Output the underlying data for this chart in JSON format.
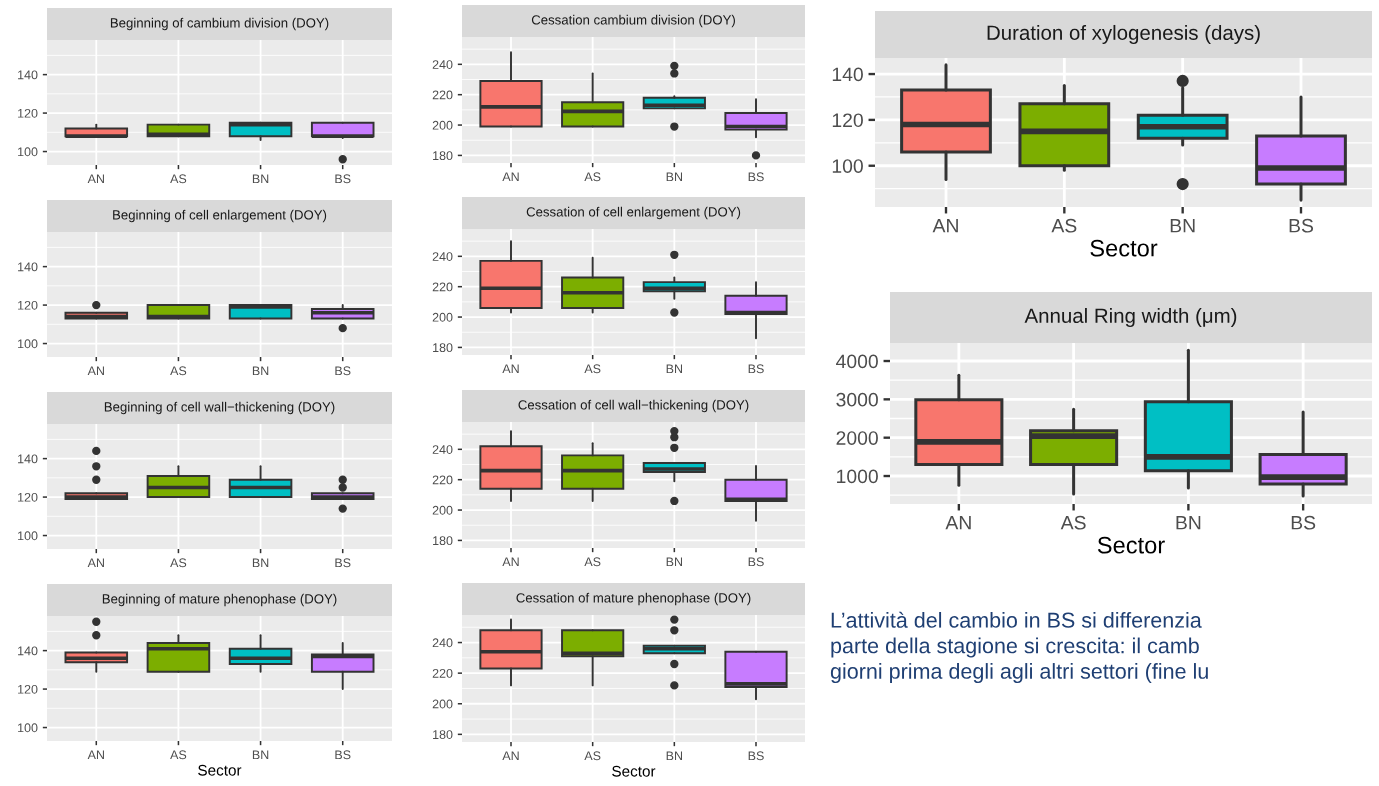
{
  "chart_data": [
    {
      "type": "box",
      "title": "Beginning of cambium division (DOY)",
      "categories": [
        "AN",
        "AS",
        "BN",
        "BS"
      ],
      "colors": [
        "#f8766d",
        "#7cae00",
        "#00bfc4",
        "#c77cff"
      ],
      "ylim": [
        93,
        158
      ],
      "yticks": [
        100,
        120,
        140
      ],
      "grid": true,
      "boxes": [
        {
          "low": 108,
          "q1": 108,
          "median": 108,
          "q3": 112,
          "high": 114
        },
        {
          "low": 108,
          "q1": 108,
          "median": 109,
          "q3": 114,
          "high": 114
        },
        {
          "low": 106,
          "q1": 108,
          "median": 114,
          "q3": 115,
          "high": 115
        },
        {
          "low": 107,
          "q1": 108,
          "median": 108,
          "q3": 115,
          "high": 115,
          "outliers": [
            96
          ]
        }
      ]
    },
    {
      "type": "box",
      "title": "Beginning of cell enlargement (DOY)",
      "categories": [
        "AN",
        "AS",
        "BN",
        "BS"
      ],
      "colors": [
        "#f8766d",
        "#7cae00",
        "#00bfc4",
        "#c77cff"
      ],
      "ylim": [
        93,
        158
      ],
      "yticks": [
        100,
        120,
        140
      ],
      "grid": true,
      "boxes": [
        {
          "low": 113,
          "q1": 113,
          "median": 114,
          "q3": 116,
          "high": 116,
          "outliers": [
            120
          ]
        },
        {
          "low": 113,
          "q1": 113,
          "median": 114,
          "q3": 120,
          "high": 120
        },
        {
          "low": 113,
          "q1": 113,
          "median": 119,
          "q3": 120,
          "high": 120
        },
        {
          "low": 113,
          "q1": 113,
          "median": 116,
          "q3": 118,
          "high": 120,
          "outliers": [
            108
          ]
        }
      ]
    },
    {
      "type": "box",
      "title": "Beginning of cell wall−thickening (DOY)",
      "categories": [
        "AN",
        "AS",
        "BN",
        "BS"
      ],
      "colors": [
        "#f8766d",
        "#7cae00",
        "#00bfc4",
        "#c77cff"
      ],
      "ylim": [
        93,
        158
      ],
      "yticks": [
        100,
        120,
        140
      ],
      "grid": true,
      "boxes": [
        {
          "low": 119,
          "q1": 119,
          "median": 120,
          "q3": 122,
          "high": 122,
          "outliers": [
            129,
            136,
            144
          ]
        },
        {
          "low": 120,
          "q1": 120,
          "median": 125,
          "q3": 131,
          "high": 136
        },
        {
          "low": 120,
          "q1": 120,
          "median": 125,
          "q3": 129,
          "high": 136
        },
        {
          "low": 119,
          "q1": 119,
          "median": 120,
          "q3": 122,
          "high": 122,
          "outliers": [
            114,
            125,
            129
          ]
        }
      ]
    },
    {
      "type": "box",
      "title": "Beginning of mature phenophase (DOY)",
      "xlabel": "Sector",
      "categories": [
        "AN",
        "AS",
        "BN",
        "BS"
      ],
      "colors": [
        "#f8766d",
        "#7cae00",
        "#00bfc4",
        "#c77cff"
      ],
      "ylim": [
        93,
        158
      ],
      "yticks": [
        100,
        120,
        140
      ],
      "grid": true,
      "boxes": [
        {
          "low": 129,
          "q1": 134,
          "median": 136,
          "q3": 139,
          "high": 139,
          "outliers": [
            148,
            155
          ]
        },
        {
          "low": 129,
          "q1": 129,
          "median": 141,
          "q3": 144,
          "high": 148
        },
        {
          "low": 129,
          "q1": 133,
          "median": 136,
          "q3": 141,
          "high": 148
        },
        {
          "low": 120,
          "q1": 129,
          "median": 137,
          "q3": 138,
          "high": 144
        }
      ]
    },
    {
      "type": "box",
      "title": "Cessation cambium division (DOY)",
      "categories": [
        "AN",
        "AS",
        "BN",
        "BS"
      ],
      "colors": [
        "#f8766d",
        "#7cae00",
        "#00bfc4",
        "#c77cff"
      ],
      "ylim": [
        175,
        258
      ],
      "yticks": [
        180,
        200,
        220,
        240
      ],
      "grid": true,
      "boxes": [
        {
          "low": 199,
          "q1": 199,
          "median": 212,
          "q3": 229,
          "high": 248
        },
        {
          "low": 199,
          "q1": 199,
          "median": 209,
          "q3": 215,
          "high": 234
        },
        {
          "low": 211,
          "q1": 211,
          "median": 213,
          "q3": 218,
          "high": 219,
          "outliers": [
            199,
            234,
            239
          ]
        },
        {
          "low": 192,
          "q1": 197,
          "median": 199,
          "q3": 208,
          "high": 217,
          "outliers": [
            180
          ]
        }
      ]
    },
    {
      "type": "box",
      "title": "Cessation of cell enlargement (DOY)",
      "categories": [
        "AN",
        "AS",
        "BN",
        "BS"
      ],
      "colors": [
        "#f8766d",
        "#7cae00",
        "#00bfc4",
        "#c77cff"
      ],
      "ylim": [
        175,
        258
      ],
      "yticks": [
        180,
        200,
        220,
        240
      ],
      "grid": true,
      "boxes": [
        {
          "low": 203,
          "q1": 206,
          "median": 219,
          "q3": 237,
          "high": 250
        },
        {
          "low": 203,
          "q1": 206,
          "median": 216,
          "q3": 226,
          "high": 239
        },
        {
          "low": 212,
          "q1": 217,
          "median": 219,
          "q3": 223,
          "high": 226,
          "outliers": [
            203,
            241
          ]
        },
        {
          "low": 186,
          "q1": 202,
          "median": 203,
          "q3": 214,
          "high": 223
        }
      ]
    },
    {
      "type": "box",
      "title": "Cessation of cell wall−thickening (DOY)",
      "categories": [
        "AN",
        "AS",
        "BN",
        "BS"
      ],
      "colors": [
        "#f8766d",
        "#7cae00",
        "#00bfc4",
        "#c77cff"
      ],
      "ylim": [
        175,
        258
      ],
      "yticks": [
        180,
        200,
        220,
        240
      ],
      "grid": true,
      "boxes": [
        {
          "low": 206,
          "q1": 214,
          "median": 226,
          "q3": 242,
          "high": 252
        },
        {
          "low": 206,
          "q1": 214,
          "median": 226,
          "q3": 236,
          "high": 244
        },
        {
          "low": 219,
          "q1": 225,
          "median": 227,
          "q3": 231,
          "high": 231,
          "outliers": [
            206,
            241,
            248,
            252
          ]
        },
        {
          "low": 193,
          "q1": 206,
          "median": 207,
          "q3": 220,
          "high": 229
        }
      ]
    },
    {
      "type": "box",
      "title": "Cessation of mature phenophase (DOY)",
      "xlabel": "Sector",
      "categories": [
        "AN",
        "AS",
        "BN",
        "BS"
      ],
      "colors": [
        "#f8766d",
        "#7cae00",
        "#00bfc4",
        "#c77cff"
      ],
      "ylim": [
        175,
        258
      ],
      "yticks": [
        180,
        200,
        220,
        240
      ],
      "grid": true,
      "boxes": [
        {
          "low": 212,
          "q1": 223,
          "median": 234,
          "q3": 248,
          "high": 255
        },
        {
          "low": 212,
          "q1": 231,
          "median": 233,
          "q3": 248,
          "high": 248
        },
        {
          "low": 233,
          "q1": 233,
          "median": 236,
          "q3": 238,
          "high": 238,
          "outliers": [
            212,
            226,
            248,
            255
          ]
        },
        {
          "low": 203,
          "q1": 211,
          "median": 213,
          "q3": 234,
          "high": 234
        }
      ]
    },
    {
      "type": "box",
      "title": "Duration of xylogenesis (days)",
      "xlabel": "Sector",
      "categories": [
        "AN",
        "AS",
        "BN",
        "BS"
      ],
      "colors": [
        "#f8766d",
        "#7cae00",
        "#00bfc4",
        "#c77cff"
      ],
      "ylim": [
        82,
        147
      ],
      "yticks": [
        100,
        120,
        140
      ],
      "grid": true,
      "boxes": [
        {
          "low": 94,
          "q1": 106,
          "median": 118,
          "q3": 133,
          "high": 144
        },
        {
          "low": 98,
          "q1": 100,
          "median": 115,
          "q3": 127,
          "high": 135
        },
        {
          "low": 109,
          "q1": 112,
          "median": 117,
          "q3": 122,
          "high": 134,
          "outliers": [
            92,
            137
          ]
        },
        {
          "low": 85,
          "q1": 92,
          "median": 99,
          "q3": 113,
          "high": 130
        }
      ]
    },
    {
      "type": "box",
      "title": "Annual Ring width (μm)",
      "xlabel": "Sector",
      "categories": [
        "AN",
        "AS",
        "BN",
        "BS"
      ],
      "colors": [
        "#f8766d",
        "#7cae00",
        "#00bfc4",
        "#c77cff"
      ],
      "ylim": [
        270,
        4470
      ],
      "yticks": [
        1000,
        2000,
        3000,
        4000
      ],
      "grid": true,
      "boxes": [
        {
          "low": 760,
          "q1": 1300,
          "median": 1890,
          "q3": 2990,
          "high": 3630
        },
        {
          "low": 530,
          "q1": 1300,
          "median": 2040,
          "q3": 2180,
          "high": 2740
        },
        {
          "low": 690,
          "q1": 1140,
          "median": 1500,
          "q3": 2940,
          "high": 4280
        },
        {
          "low": 480,
          "q1": 790,
          "median": 970,
          "q3": 1560,
          "high": 2670
        }
      ]
    },
    {
      "type": "other",
      "annotations": [
        "L’attività del cambio in BS si differenzia\nparte della stagione si crescita: il camb\ngiorni prima degli agli altri settori (fine lu"
      ]
    }
  ]
}
